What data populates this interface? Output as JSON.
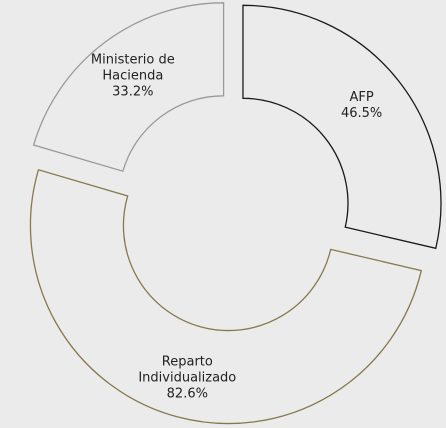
{
  "chart_data": {
    "type": "donut",
    "categories": [
      "AFP",
      "Reparto Individualizado",
      "Ministerio de Hacienda"
    ],
    "values": [
      46.5,
      82.6,
      33.2
    ],
    "value_labels": [
      "46.5%",
      "82.6%",
      "33.2%"
    ],
    "colors": [
      "#1a1a1a",
      "#857a4e",
      "#9a9a9a"
    ]
  }
}
